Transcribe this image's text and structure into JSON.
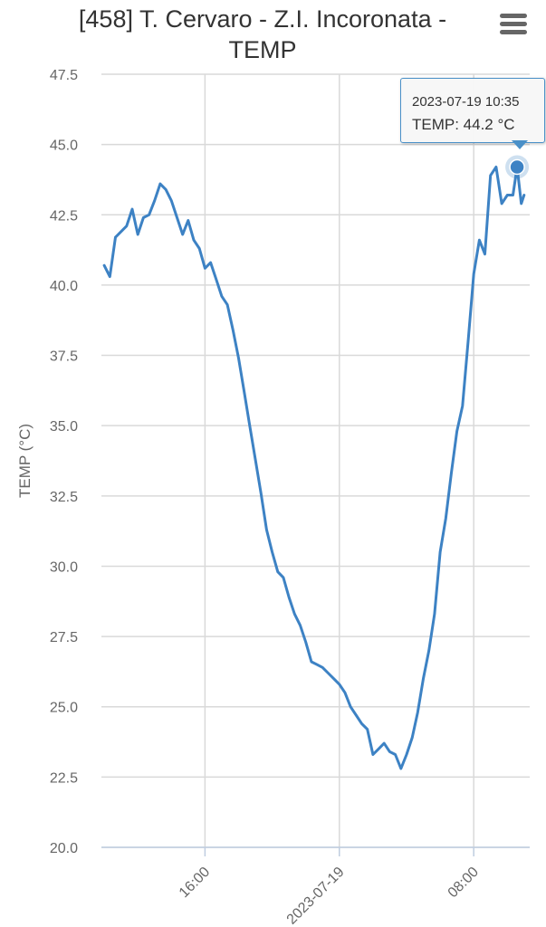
{
  "header": {
    "title_line1": "[458] T. Cervaro - Z.I. Incoronata -",
    "title_line2": "TEMP",
    "menu_icon": "hamburger-menu-icon"
  },
  "tooltip": {
    "date": "2023-07-19 10:35",
    "value_text": "TEMP: 44.2 °C"
  },
  "colors": {
    "series": "#3d82c4",
    "grid": "#d9d9d9",
    "axis_text": "#666666",
    "title": "#333333"
  },
  "chart_data": {
    "type": "line",
    "title": "[458] T. Cervaro - Z.I. Incoronata - TEMP",
    "ylabel": "TEMP (°C)",
    "xlabel": "",
    "ylim": [
      20.0,
      47.5
    ],
    "yticks": [
      20.0,
      22.5,
      25.0,
      27.5,
      30.0,
      32.5,
      35.0,
      37.5,
      40.0,
      42.5,
      45.0,
      47.5
    ],
    "xlim": [
      "2023-07-18 09:50",
      "2023-07-19 11:20"
    ],
    "xticks": [
      {
        "label": "16:00",
        "x": "2023-07-18 16:00"
      },
      {
        "label": "2023-07-19",
        "x": "2023-07-19 00:00"
      },
      {
        "label": "08:00",
        "x": "2023-07-19 08:00"
      }
    ],
    "grid": true,
    "legend": "none",
    "series": [
      {
        "x": [
          "2023-07-18 10:00",
          "2023-07-18 10:20",
          "2023-07-18 10:40",
          "2023-07-18 11:00",
          "2023-07-18 11:20",
          "2023-07-18 11:40",
          "2023-07-18 12:00",
          "2023-07-18 12:20",
          "2023-07-18 12:40",
          "2023-07-18 13:00",
          "2023-07-18 13:20",
          "2023-07-18 13:40",
          "2023-07-18 14:00",
          "2023-07-18 14:20",
          "2023-07-18 14:40",
          "2023-07-18 15:00",
          "2023-07-18 15:20",
          "2023-07-18 15:40",
          "2023-07-18 16:00",
          "2023-07-18 16:20",
          "2023-07-18 16:40",
          "2023-07-18 17:00",
          "2023-07-18 17:20",
          "2023-07-18 17:40",
          "2023-07-18 18:00",
          "2023-07-18 18:20",
          "2023-07-18 18:40",
          "2023-07-18 19:00",
          "2023-07-18 19:20",
          "2023-07-18 19:40",
          "2023-07-18 20:00",
          "2023-07-18 20:20",
          "2023-07-18 20:40",
          "2023-07-18 21:00",
          "2023-07-18 21:20",
          "2023-07-18 21:40",
          "2023-07-18 22:00",
          "2023-07-18 22:20",
          "2023-07-18 22:40",
          "2023-07-18 23:00",
          "2023-07-18 23:20",
          "2023-07-18 23:40",
          "2023-07-19 00:00",
          "2023-07-19 00:20",
          "2023-07-19 00:40",
          "2023-07-19 01:00",
          "2023-07-19 01:20",
          "2023-07-19 01:40",
          "2023-07-19 02:00",
          "2023-07-19 02:20",
          "2023-07-19 02:40",
          "2023-07-19 03:00",
          "2023-07-19 03:20",
          "2023-07-19 03:40",
          "2023-07-19 04:00",
          "2023-07-19 04:20",
          "2023-07-19 04:40",
          "2023-07-19 05:00",
          "2023-07-19 05:20",
          "2023-07-19 05:40",
          "2023-07-19 06:00",
          "2023-07-19 06:20",
          "2023-07-19 06:40",
          "2023-07-19 07:00",
          "2023-07-19 07:20",
          "2023-07-19 07:40",
          "2023-07-19 08:00",
          "2023-07-19 08:20",
          "2023-07-19 08:40",
          "2023-07-19 09:00",
          "2023-07-19 09:20",
          "2023-07-19 09:40",
          "2023-07-19 10:00",
          "2023-07-19 10:20",
          "2023-07-19 10:35",
          "2023-07-19 10:50",
          "2023-07-19 11:00"
        ],
        "values": [
          40.7,
          40.3,
          41.7,
          41.9,
          42.1,
          42.7,
          41.8,
          42.4,
          42.5,
          43.0,
          43.6,
          43.4,
          43.0,
          42.4,
          41.8,
          42.3,
          41.6,
          41.3,
          40.6,
          40.8,
          40.2,
          39.6,
          39.3,
          38.4,
          37.4,
          36.2,
          35.0,
          33.8,
          32.6,
          31.3,
          30.5,
          29.8,
          29.6,
          28.9,
          28.3,
          27.9,
          27.3,
          26.6,
          26.5,
          26.4,
          26.2,
          26.0,
          25.8,
          25.5,
          25.0,
          24.7,
          24.4,
          24.2,
          23.3,
          23.5,
          23.7,
          23.4,
          23.3,
          22.8,
          23.3,
          23.9,
          24.8,
          26.0,
          27.0,
          28.3,
          30.5,
          31.7,
          33.3,
          34.8,
          35.7,
          38.0,
          40.4,
          41.6,
          41.1,
          43.9,
          44.2,
          42.9,
          43.2,
          43.2,
          44.2,
          42.9,
          43.2
        ],
        "highlight": {
          "x": "2023-07-19 10:35",
          "y": 44.2
        }
      }
    ]
  }
}
